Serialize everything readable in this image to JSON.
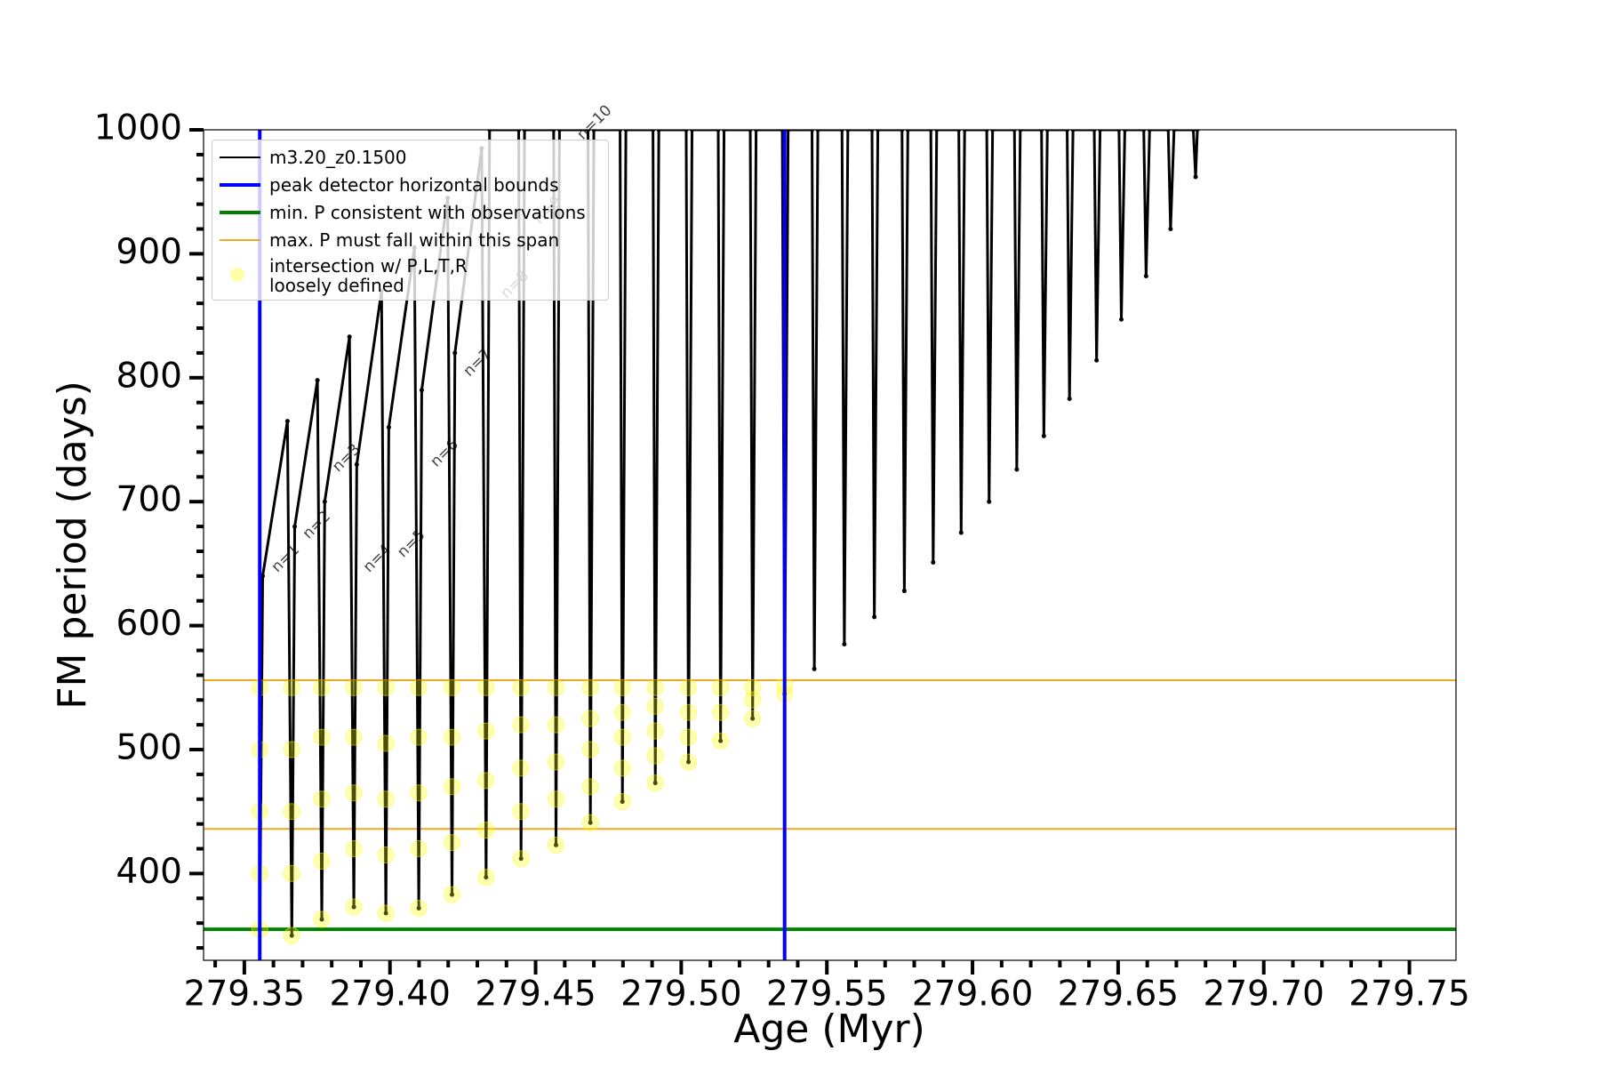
{
  "chart_data": {
    "type": "line",
    "xlabel": "Age (Myr)",
    "ylabel": "FM period (days)",
    "xlim": [
      279.336,
      279.766
    ],
    "ylim": [
      330,
      1000
    ],
    "xticks": [
      279.35,
      {
        "value": 279.4,
        "label": "279.40"
      },
      279.45,
      {
        "value": 279.5,
        "label": "279.50"
      },
      279.55,
      {
        "value": 279.6,
        "label": "279.60"
      },
      279.65,
      {
        "value": 279.7,
        "label": "279.70"
      },
      279.75
    ],
    "yticks": [
      400,
      500,
      600,
      700,
      800,
      900,
      1000
    ],
    "xminorticks": [
      279.34,
      279.36,
      279.37,
      279.38,
      279.39,
      279.41,
      279.42,
      279.43,
      279.44,
      279.46,
      279.47,
      279.48,
      279.49,
      279.51,
      279.52,
      279.53,
      279.54,
      279.56,
      279.57,
      279.58,
      279.59,
      279.61,
      279.62,
      279.63,
      279.64,
      279.66,
      279.67,
      279.68,
      279.69,
      279.71,
      279.72,
      279.73,
      279.74
    ],
    "yminorticks": [
      340,
      360,
      380,
      420,
      440,
      460,
      480,
      520,
      540,
      560,
      580,
      620,
      640,
      660,
      680,
      720,
      740,
      760,
      780,
      820,
      840,
      860,
      880,
      920,
      940,
      960,
      980
    ],
    "series": [
      {
        "name": "m3.20_z0.1500",
        "color": "#000000",
        "x": [
          279.3553,
          279.3563,
          279.3648,
          279.3663,
          279.3673,
          279.3751,
          279.3766,
          279.3776,
          279.3861,
          279.3876,
          279.3886,
          279.3971,
          279.3986,
          279.3996,
          279.4084,
          279.4099,
          279.4109,
          279.4198,
          279.4213,
          279.4223,
          279.4315,
          279.433,
          279.4342,
          279.4442,
          279.445,
          279.4462,
          279.4562,
          279.457,
          279.4582,
          279.468,
          279.4688,
          279.47,
          279.479,
          279.4798,
          279.481,
          279.4903,
          279.4911,
          279.4923,
          279.5017,
          279.5025,
          279.5037,
          279.5127,
          279.5135,
          279.5147,
          279.5237,
          279.5245,
          279.5257,
          279.5347,
          279.5355,
          279.5367,
          279.5449,
          279.5457,
          279.5469,
          279.5552,
          279.556,
          279.5572,
          279.5655,
          279.5663,
          279.5675,
          279.5758,
          279.5766,
          279.5778,
          279.5857,
          279.5865,
          279.5877,
          279.5953,
          279.5961,
          279.5973,
          279.6049,
          279.6057,
          279.6069,
          279.6144,
          279.6152,
          279.6164,
          279.6237,
          279.6245,
          279.6257,
          279.6325,
          279.6333,
          279.6345,
          279.6418,
          279.6426,
          279.6438,
          279.6503,
          279.6511,
          279.6523,
          279.6588,
          279.6596,
          279.6608,
          279.6672,
          279.668,
          279.6692,
          279.6758,
          279.6766,
          279.6772
        ],
        "values": [
          355,
          640,
          765,
          350,
          680,
          798,
          363,
          700,
          833,
          373,
          730,
          870,
          368,
          760,
          905,
          372,
          790,
          945,
          383,
          820,
          985,
          397,
          1000,
          1000,
          412,
          1000,
          1000,
          423,
          1000,
          1000,
          441,
          1000,
          1000,
          458,
          1000,
          1000,
          473,
          1000,
          1000,
          490,
          1000,
          1000,
          507,
          1000,
          1000,
          525,
          1000,
          1000,
          545,
          1000,
          1000,
          565,
          1000,
          1000,
          585,
          1000,
          1000,
          607,
          1000,
          1000,
          628,
          1000,
          1000,
          651,
          1000,
          1000,
          675,
          1000,
          1000,
          700,
          1000,
          1000,
          726,
          1000,
          1000,
          753,
          1000,
          1000,
          783,
          1000,
          1000,
          814,
          1000,
          1000,
          847,
          1000,
          1000,
          882,
          1000,
          1000,
          920,
          1000,
          1000,
          962,
          1000
        ]
      }
    ],
    "vlines": {
      "name": "peak detector horizontal bounds",
      "color": "#0000ff",
      "x": [
        279.3553,
        279.5355
      ]
    },
    "hlines": [
      {
        "name": "min. P consistent with observations",
        "color": "#008000",
        "values": [
          355
        ]
      },
      {
        "name": "max. P must fall within this span",
        "color": "#f0a820",
        "values": [
          436,
          556
        ]
      }
    ],
    "points": {
      "name": "intersection w/ P,L,T,R\nloosely defined",
      "color": "#ffff00",
      "x": [
        279.3553,
        279.3553,
        279.3553,
        279.3553,
        279.3553,
        279.3663,
        279.3663,
        279.3663,
        279.3663,
        279.3663,
        279.3766,
        279.3766,
        279.3766,
        279.3766,
        279.3766,
        279.3876,
        279.3876,
        279.3876,
        279.3876,
        279.3876,
        279.3986,
        279.3986,
        279.3986,
        279.3986,
        279.3986,
        279.4099,
        279.4099,
        279.4099,
        279.4099,
        279.4099,
        279.4213,
        279.4213,
        279.4213,
        279.4213,
        279.4213,
        279.433,
        279.433,
        279.433,
        279.433,
        279.433,
        279.445,
        279.445,
        279.445,
        279.445,
        279.445,
        279.457,
        279.457,
        279.457,
        279.457,
        279.457,
        279.4688,
        279.4688,
        279.4688,
        279.4688,
        279.4688,
        279.4798,
        279.4798,
        279.4798,
        279.4798,
        279.4798,
        279.4911,
        279.4911,
        279.4911,
        279.4911,
        279.4911,
        279.5025,
        279.5025,
        279.5025,
        279.5025,
        279.5135,
        279.5135,
        279.5135,
        279.5245,
        279.5245,
        279.5245,
        279.5355,
        279.5355
      ],
      "values": [
        355,
        400,
        450,
        500,
        550,
        350,
        400,
        450,
        500,
        550,
        363,
        410,
        460,
        510,
        550,
        373,
        420,
        465,
        510,
        550,
        368,
        415,
        460,
        505,
        550,
        372,
        420,
        465,
        510,
        550,
        383,
        425,
        470,
        510,
        550,
        397,
        435,
        475,
        515,
        550,
        412,
        450,
        485,
        520,
        550,
        423,
        460,
        490,
        520,
        550,
        441,
        470,
        500,
        525,
        550,
        458,
        485,
        510,
        530,
        550,
        473,
        495,
        515,
        535,
        550,
        490,
        510,
        530,
        550,
        507,
        530,
        550,
        525,
        540,
        550,
        545,
        552
      ]
    },
    "annotations": [
      {
        "text": "n=1",
        "x": 279.3603,
        "y": 645
      },
      {
        "text": "n=2",
        "x": 279.371,
        "y": 672
      },
      {
        "text": "n=3",
        "x": 279.3812,
        "y": 726
      },
      {
        "text": "n=4",
        "x": 279.3918,
        "y": 645
      },
      {
        "text": "n=5",
        "x": 279.4035,
        "y": 657
      },
      {
        "text": "n=6",
        "x": 279.4149,
        "y": 730
      },
      {
        "text": "n=7",
        "x": 279.4262,
        "y": 803
      },
      {
        "text": "n=8",
        "x": 279.439,
        "y": 866
      },
      {
        "text": "n=9",
        "x": 279.4504,
        "y": 926
      },
      {
        "text": "n=10",
        "x": 279.4652,
        "y": 994
      }
    ]
  }
}
